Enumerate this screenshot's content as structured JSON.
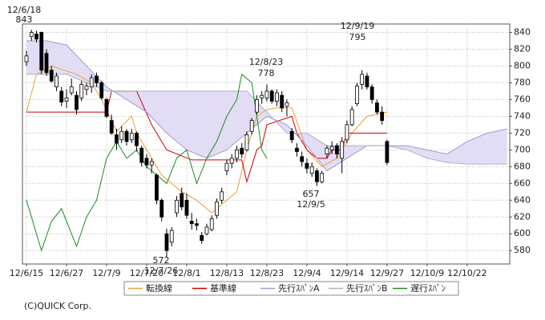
{
  "chart_data": {
    "type": "candlestick",
    "xlim": [
      -0.8,
      96.5
    ],
    "xticks": [
      {
        "value": 0,
        "label": "12/6/15"
      },
      {
        "value": 8,
        "label": "12/6/27"
      },
      {
        "value": 16,
        "label": "12/7/9"
      },
      {
        "value": 24,
        "label": "12/7/20"
      },
      {
        "value": 32,
        "label": "12/8/1"
      },
      {
        "value": 40,
        "label": "12/8/13"
      },
      {
        "value": 48,
        "label": "12/8/23"
      },
      {
        "value": 56,
        "label": "12/9/4"
      },
      {
        "value": 64,
        "label": "12/9/14"
      },
      {
        "value": 72,
        "label": "12/9/27"
      },
      {
        "value": 80,
        "label": "12/10/9"
      },
      {
        "value": 88,
        "label": "12/10/22"
      }
    ],
    "ylim": [
      564,
      850
    ],
    "yticks": [
      580,
      600,
      620,
      640,
      660,
      680,
      700,
      720,
      740,
      760,
      780,
      800,
      820,
      840
    ],
    "grid": true,
    "candles": {
      "up_color": "#ffffff",
      "down_color": "#000000",
      "open": [
        805,
        835,
        838,
        840,
        815,
        795,
        775,
        770,
        758,
        768,
        765,
        762,
        772,
        775,
        788,
        780,
        760,
        735,
        718,
        712,
        722,
        712,
        720,
        702,
        690,
        682,
        670,
        640,
        600,
        590,
        625,
        648,
        640,
        615,
        612,
        598,
        600,
        605,
        622,
        640,
        675,
        684,
        690,
        702,
        700,
        722,
        745,
        762,
        762,
        770,
        758,
        765,
        752,
        722,
        702,
        692,
        684,
        672,
        675,
        662,
        695,
        700,
        705,
        690,
        712,
        730,
        755,
        778,
        788,
        775,
        756,
        745,
        710
      ],
      "high": [
        818,
        843,
        842,
        841,
        820,
        800,
        792,
        775,
        772,
        785,
        770,
        782,
        780,
        790,
        792,
        782,
        762,
        742,
        725,
        728,
        725,
        725,
        722,
        705,
        695,
        690,
        672,
        642,
        606,
        608,
        645,
        655,
        648,
        625,
        618,
        602,
        612,
        622,
        642,
        655,
        688,
        695,
        705,
        708,
        722,
        738,
        765,
        770,
        778,
        772,
        772,
        770,
        760,
        726,
        708,
        698,
        690,
        685,
        678,
        675,
        705,
        710,
        708,
        715,
        735,
        752,
        780,
        795,
        792,
        778,
        760,
        752,
        712
      ],
      "low": [
        800,
        830,
        828,
        790,
        788,
        780,
        770,
        752,
        750,
        765,
        742,
        758,
        765,
        768,
        775,
        760,
        738,
        718,
        700,
        708,
        705,
        708,
        698,
        680,
        678,
        672,
        635,
        615,
        572,
        585,
        620,
        628,
        618,
        605,
        604,
        588,
        598,
        603,
        618,
        636,
        670,
        678,
        685,
        690,
        698,
        718,
        742,
        755,
        758,
        755,
        752,
        745,
        740,
        708,
        692,
        680,
        672,
        668,
        657,
        660,
        690,
        695,
        690,
        672,
        708,
        728,
        752,
        772,
        772,
        755,
        742,
        730,
        682
      ],
      "close": [
        812,
        840,
        832,
        795,
        792,
        782,
        788,
        757,
        762,
        775,
        748,
        778,
        776,
        786,
        780,
        762,
        740,
        720,
        708,
        722,
        710,
        720,
        705,
        685,
        682,
        686,
        640,
        620,
        580,
        604,
        640,
        632,
        622,
        612,
        610,
        592,
        608,
        618,
        638,
        650,
        684,
        690,
        700,
        695,
        718,
        735,
        760,
        765,
        770,
        758,
        768,
        750,
        756,
        712,
        698,
        686,
        678,
        680,
        662,
        672,
        702,
        704,
        695,
        710,
        730,
        748,
        776,
        790,
        775,
        760,
        745,
        735,
        685
      ]
    },
    "series": [
      {
        "name": "転換線",
        "color": "#e8a23c",
        "x": [
          0,
          2,
          5,
          10,
          13,
          15,
          18,
          21,
          22,
          25,
          27,
          29,
          31,
          34,
          37,
          40,
          42,
          44,
          46,
          48,
          50,
          53,
          56,
          59,
          62,
          65,
          68,
          72
        ],
        "values": [
          745,
          790,
          800,
          790,
          780,
          760,
          722,
          740,
          720,
          690,
          670,
          660,
          650,
          640,
          625,
          640,
          650,
          700,
          740,
          748,
          750,
          750,
          700,
          680,
          690,
          720,
          740,
          745
        ]
      },
      {
        "name": "基準線",
        "color": "#cc0000",
        "x": [
          0,
          16,
          17,
          22,
          25,
          28,
          33,
          43,
          44,
          46,
          47,
          48,
          53,
          54,
          56,
          58,
          60,
          61,
          63,
          64,
          66,
          68,
          72
        ],
        "values": [
          745,
          745,
          770,
          770,
          730,
          700,
          688,
          688,
          662,
          700,
          705,
          730,
          740,
          720,
          700,
          690,
          690,
          700,
          700,
          720,
          720,
          720,
          720
        ]
      },
      {
        "name": "先行ｽﾊﾟﾝA",
        "color": "#a898d0",
        "x": [
          0,
          4,
          8,
          12,
          16,
          20,
          24,
          28,
          32,
          36,
          40,
          44,
          48,
          52,
          56,
          60,
          64,
          68,
          72,
          76,
          80,
          84,
          88,
          92,
          96
        ],
        "values": [
          830,
          830,
          825,
          800,
          775,
          760,
          745,
          720,
          700,
          690,
          700,
          720,
          740,
          730,
          705,
          675,
          690,
          705,
          705,
          705,
          700,
          695,
          710,
          720,
          725
        ]
      },
      {
        "name": "先行ｽﾊﾟﾝB",
        "color": "#b0b0c8",
        "x": [
          0,
          4,
          8,
          12,
          16,
          20,
          24,
          28,
          32,
          36,
          40,
          44,
          48,
          52,
          56,
          60,
          64,
          68,
          72,
          76,
          80,
          84,
          88,
          92,
          96
        ],
        "values": [
          790,
          790,
          790,
          780,
          770,
          770,
          770,
          770,
          770,
          770,
          770,
          770,
          745,
          720,
          720,
          705,
          705,
          705,
          705,
          700,
          690,
          685,
          683,
          683,
          683
        ]
      },
      {
        "name": "遅行ｽﾊﾟﾝ",
        "color": "#228822",
        "x": [
          0,
          2,
          3,
          5,
          7,
          9,
          10,
          12,
          14,
          16,
          18,
          20,
          22,
          24,
          26,
          28,
          30,
          32,
          34,
          36,
          38,
          40,
          42,
          43,
          45,
          46,
          47,
          48
        ],
        "values": [
          640,
          600,
          580,
          615,
          630,
          600,
          585,
          620,
          640,
          690,
          710,
          690,
          700,
          680,
          670,
          660,
          690,
          700,
          660,
          690,
          710,
          740,
          760,
          790,
          780,
          740,
          700,
          690
        ]
      }
    ],
    "cloud_color": "#e2ddf5",
    "annotations": [
      {
        "date": "12/6/18",
        "value": 843
      },
      {
        "date": "12/8/23",
        "value": 778
      },
      {
        "date": "12/9/19",
        "value": 795
      },
      {
        "value": 657,
        "date": "12/9/5"
      },
      {
        "value": 572,
        "date": "12/7/26"
      }
    ],
    "copyright": "(C)QUICK Corp."
  }
}
